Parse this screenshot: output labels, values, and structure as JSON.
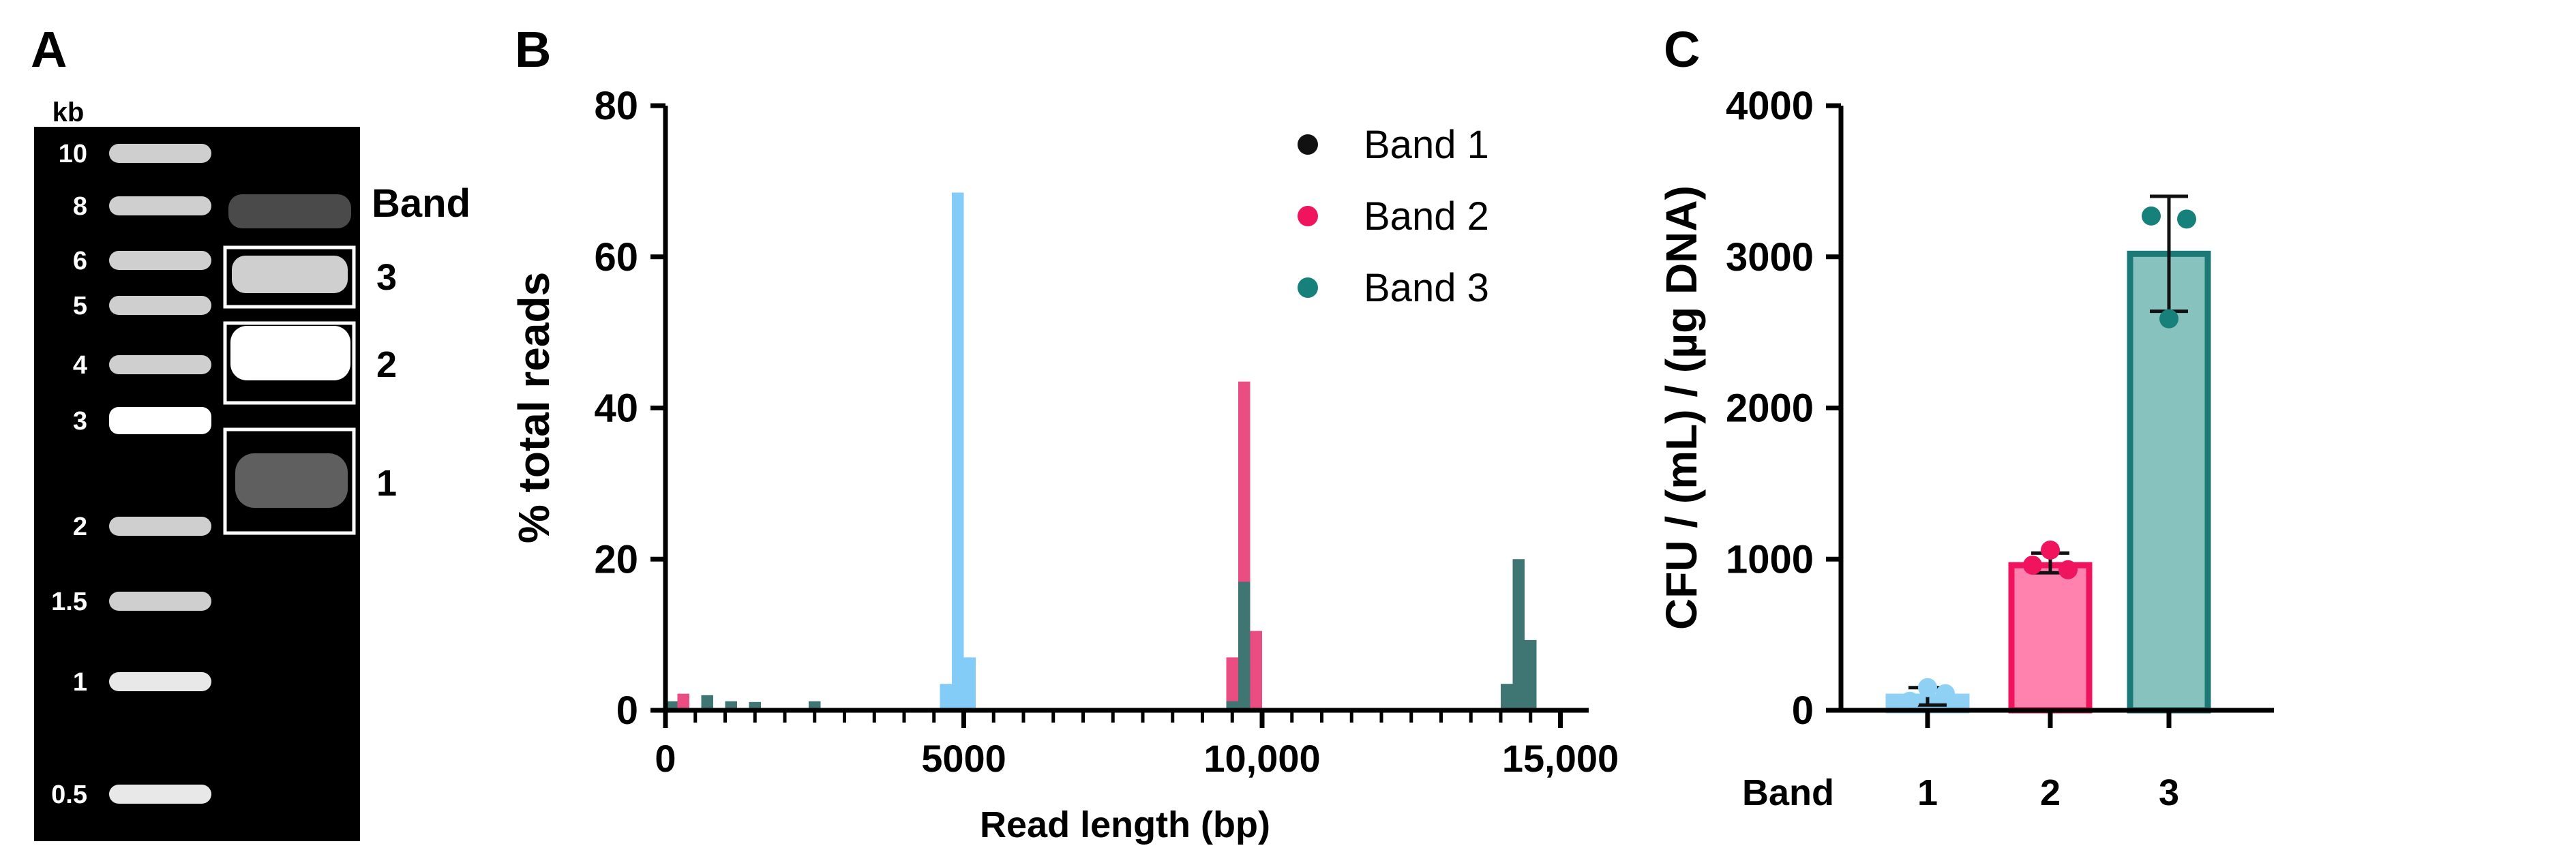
{
  "colors": {
    "band1": "#8FD1F5",
    "band2_fill": "#FF82AE",
    "band2_stroke": "#F0145F",
    "band3_fill": "#88C2BE",
    "band3_stroke": "#1B7A77",
    "band3_dot": "#16807A",
    "histo_band1": "#82CCF7",
    "histo_band2": "#E73A73",
    "histo_band3": "#3F7674"
  },
  "panel_a": {
    "letter": "A",
    "unit": "kb",
    "ladder": [
      "10",
      "8",
      "6",
      "5",
      "4",
      "3",
      "2",
      "1.5",
      "1",
      "0.5"
    ],
    "band_header": "Band",
    "band_labels": [
      "3",
      "2",
      "1"
    ]
  },
  "panel_b": {
    "letter": "B",
    "legend": [
      "Band 1",
      "Band 2",
      "Band 3"
    ],
    "y_ticks": [
      "0",
      "20",
      "40",
      "60",
      "80"
    ],
    "x_ticks": [
      "0",
      "5000",
      "10,000",
      "15,000"
    ]
  },
  "panel_c": {
    "letter": "C",
    "y_ticks": [
      "0",
      "1000",
      "2000",
      "3000",
      "4000"
    ],
    "x_header": "Band",
    "categories_labels": [
      "1",
      "2",
      "3"
    ]
  },
  "chart_data": [
    {
      "type": "bar",
      "panel": "B",
      "xlabel": "Read length (bp)",
      "ylabel": "% total reads",
      "xlim": [
        0,
        15200
      ],
      "ylim": [
        0,
        80
      ],
      "x_ticks": [
        0,
        5000,
        10000,
        15000
      ],
      "y_ticks": [
        0,
        20,
        40,
        60,
        80
      ],
      "bin_width": 200,
      "legend_position": "top-right",
      "series": [
        {
          "name": "Band 1",
          "color": "#82CCF7",
          "x": [
            4600,
            4800,
            5000
          ],
          "values": [
            3.5,
            68.5,
            7
          ]
        },
        {
          "name": "Band 2",
          "color": "#E73A73",
          "x": [
            200,
            9400,
            9600,
            9800
          ],
          "values": [
            2.2,
            7,
            43.5,
            10.5
          ]
        },
        {
          "name": "Band 3",
          "color": "#3F7674",
          "x": [
            0,
            600,
            1000,
            1400,
            2400,
            9400,
            9600,
            14000,
            14200,
            14400
          ],
          "values": [
            1.2,
            2,
            1.2,
            1.1,
            1.2,
            1.2,
            17,
            3.5,
            20,
            9.3
          ]
        }
      ]
    },
    {
      "type": "bar",
      "panel": "C",
      "xlabel": "Band",
      "ylabel": "CFU / (mL) / (µg DNA)",
      "ylim": [
        0,
        4000
      ],
      "y_ticks": [
        0,
        1000,
        2000,
        3000,
        4000
      ],
      "categories": [
        "1",
        "2",
        "3"
      ],
      "values": [
        90,
        960,
        3020
      ],
      "error": [
        [
          35,
          150
        ],
        [
          910,
          1040
        ],
        [
          2640,
          3400
        ]
      ],
      "points": [
        [
          60,
          150,
          110
        ],
        [
          960,
          1060,
          930
        ],
        [
          3270,
          2590,
          3250
        ]
      ]
    }
  ]
}
